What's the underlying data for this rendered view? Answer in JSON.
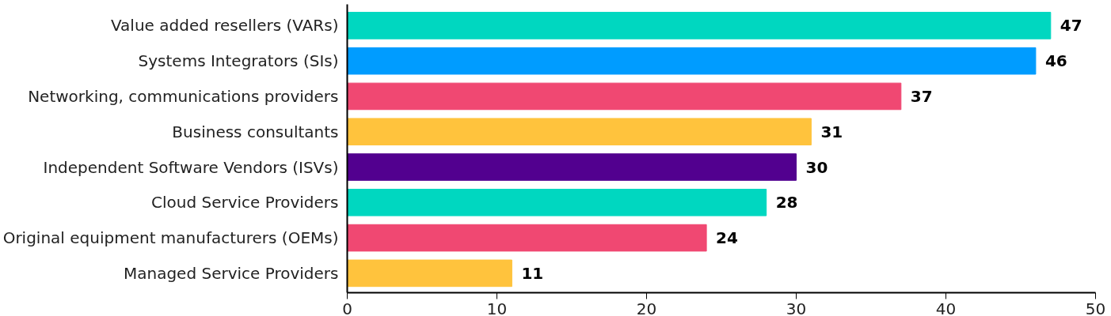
{
  "chart_data": {
    "type": "bar",
    "orientation": "horizontal",
    "categories": [
      "Value added resellers (VARs)",
      "Systems Integrators (SIs)",
      "Networking, communications providers",
      "Business consultants",
      "Independent Software Vendors (ISVs)",
      "Cloud Service Providers",
      "Original equipment manufacturers (OEMs)",
      "Managed Service Providers"
    ],
    "values": [
      47,
      46,
      37,
      31,
      30,
      28,
      24,
      11
    ],
    "colors": [
      "#00d7c0",
      "#009cff",
      "#f04872",
      "#ffc33d",
      "#52008f",
      "#00d7c0",
      "#f04872",
      "#ffc33d"
    ],
    "xlim": [
      0,
      50
    ],
    "xticks": [
      0,
      10,
      20,
      30,
      40,
      50
    ],
    "data_labels": true,
    "grid": false
  }
}
